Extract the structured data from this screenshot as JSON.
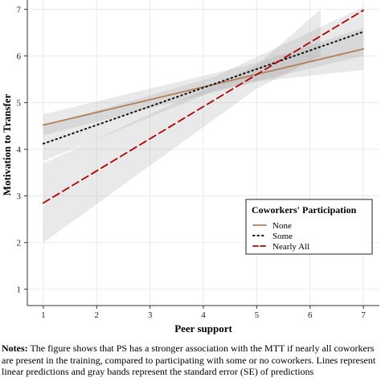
{
  "chart_data": {
    "type": "line",
    "title": "",
    "xlabel": "Peer support",
    "ylabel": "Motivation to Transfer",
    "xlim": [
      0.7,
      7.3
    ],
    "ylim": [
      0.65,
      7.2
    ],
    "x_ticks": [
      1,
      2,
      3,
      4,
      5,
      6,
      7
    ],
    "y_ticks": [
      1,
      2,
      3,
      4,
      5,
      6,
      7
    ],
    "grid": true,
    "legend": {
      "title": "Coworkers' Participation",
      "position": "bottom-right"
    },
    "series": [
      {
        "name": "None",
        "x": [
          1,
          7
        ],
        "y": [
          4.52,
          6.15
        ],
        "se_band": {
          "x": [
            1,
            5,
            7
          ],
          "lower": [
            4.3,
            5.45,
            5.7
          ],
          "upper": [
            4.75,
            5.85,
            6.6
          ]
        },
        "color": "#b0805a",
        "style": "solid"
      },
      {
        "name": "Some",
        "x": [
          1,
          7
        ],
        "y": [
          4.12,
          6.52
        ],
        "se_band": {
          "x": [
            1,
            4.2,
            7
          ],
          "lower": [
            3.75,
            5.25,
            6.0
          ],
          "upper": [
            4.5,
            5.55,
            7.05
          ]
        },
        "color": "#111111",
        "style": "dotted"
      },
      {
        "name": "Nearly All",
        "x": [
          1,
          7
        ],
        "y": [
          2.85,
          6.98
        ],
        "se_band": {
          "x": [
            1,
            5,
            6.2
          ],
          "lower": [
            2.0,
            5.3,
            6.0
          ],
          "upper": [
            3.7,
            5.8,
            7.0
          ]
        },
        "color": "#b00000",
        "style": "dashed"
      }
    ]
  },
  "note": {
    "label": "Notes:",
    "text": " The figure shows that PS has a stronger association with the MTT if nearly all coworkers are present in the training, compared to participating with some or no coworkers. Lines represent linear predictions and gray bands represent the standard error (SE) of predictions"
  }
}
